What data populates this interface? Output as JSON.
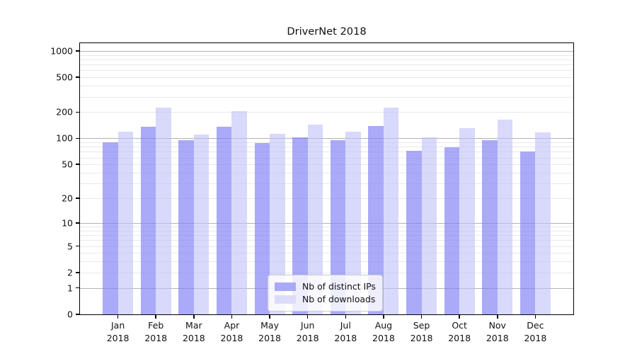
{
  "chart_data": {
    "type": "bar",
    "title": "DriverNet 2018",
    "x_categories": [
      {
        "month": "Jan",
        "year": "2018"
      },
      {
        "month": "Feb",
        "year": "2018"
      },
      {
        "month": "Mar",
        "year": "2018"
      },
      {
        "month": "Apr",
        "year": "2018"
      },
      {
        "month": "May",
        "year": "2018"
      },
      {
        "month": "Jun",
        "year": "2018"
      },
      {
        "month": "Jul",
        "year": "2018"
      },
      {
        "month": "Aug",
        "year": "2018"
      },
      {
        "month": "Sep",
        "year": "2018"
      },
      {
        "month": "Oct",
        "year": "2018"
      },
      {
        "month": "Nov",
        "year": "2018"
      },
      {
        "month": "Dec",
        "year": "2018"
      }
    ],
    "series": [
      {
        "name": "Nb of distinct IPs",
        "color": "#a9a9f8",
        "fill": "rgba(129,129,245,0.68)",
        "values": [
          90,
          137,
          96,
          135,
          88,
          102,
          96,
          139,
          72,
          79,
          96,
          70
        ]
      },
      {
        "name": "Nb of downloads",
        "color": "#dcdcfa",
        "fill": "rgba(192,192,248,0.60)",
        "values": [
          119,
          224,
          110,
          205,
          113,
          145,
          120,
          227,
          103,
          132,
          165,
          117
        ]
      }
    ],
    "yscale": "log1p",
    "ylim": [
      0,
      1230
    ],
    "yticks": [
      1000,
      500,
      200,
      100,
      50,
      20,
      10,
      5,
      2,
      1,
      0
    ],
    "major_gridlines": [
      1,
      10,
      100,
      1000
    ],
    "minor_gridline_bases": [
      1,
      10,
      100
    ],
    "grid": true,
    "legend_position": "lower center"
  },
  "colors": {
    "major_grid": "#b2b2b2",
    "minor_grid": "#e9e9ed",
    "spine": "#000000",
    "text": "#111111"
  }
}
